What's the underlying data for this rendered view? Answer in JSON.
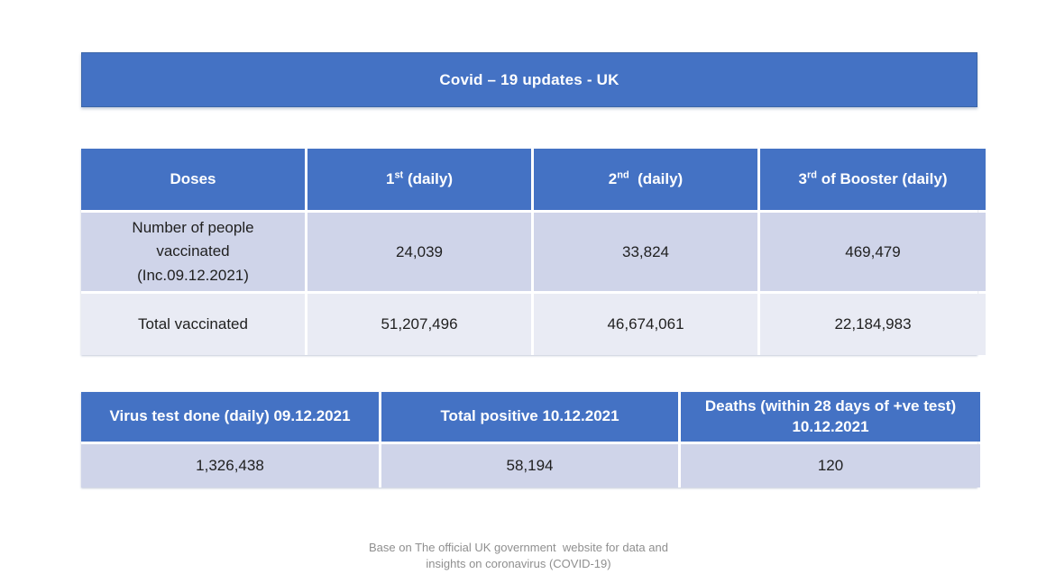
{
  "slide": {
    "title": "Covid – 19 updates - UK",
    "footer": "Base on The official UK government  website for data and\ninsights on coronavirus (COVID-19)"
  },
  "colors": {
    "header_blue": "#4472C4",
    "row_shaded": "#CFD4E9",
    "row_light": "#E9EBF4",
    "header_text": "#FFFFFF",
    "body_text": "#1F1F1F",
    "footer_text": "#8F8F8F"
  },
  "vaccination_table": {
    "headers": [
      {
        "text": "Doses",
        "sup": "",
        "rest": ""
      },
      {
        "text": "1",
        "sup": "st",
        "rest": " (daily)"
      },
      {
        "text": "2",
        "sup": "nd",
        "rest": "  (daily)"
      },
      {
        "text": "3",
        "sup": "rd",
        "rest": " of Booster (daily)"
      }
    ],
    "rows": [
      {
        "label": "Number of people\nvaccinated\n(Inc.09.12.2021)",
        "values": [
          "24,039",
          "33,824",
          "469,479"
        ]
      },
      {
        "label": "Total vaccinated",
        "values": [
          "51,207,496",
          "46,674,061",
          "22,184,983"
        ]
      }
    ]
  },
  "stats_table": {
    "headers": [
      "Virus test done (daily) 09.12.2021",
      "Total positive 10.12.2021",
      "Deaths (within 28 days of +ve test)\n10.12.2021"
    ],
    "values": [
      "1,326,438",
      "58,194",
      "120"
    ]
  }
}
